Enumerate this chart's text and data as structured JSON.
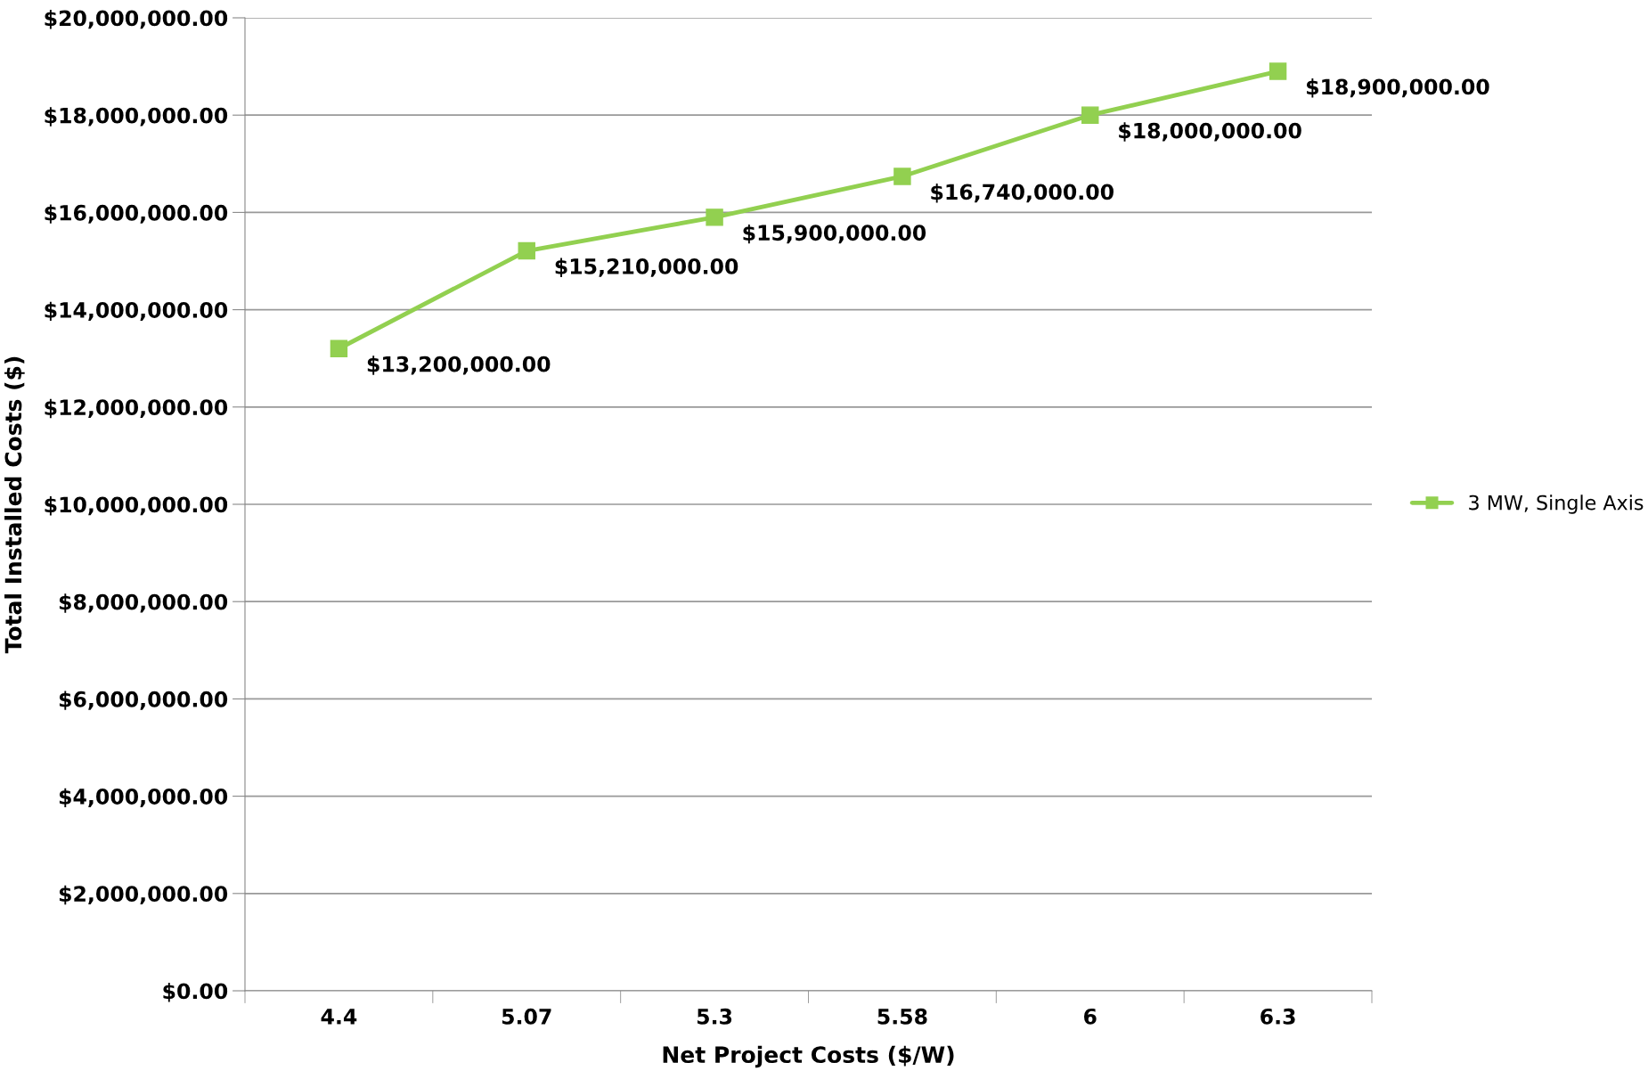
{
  "chart_data": {
    "type": "line",
    "xlabel": "Net Project Costs ($/W)",
    "ylabel": "Total Installed Costs ($)",
    "categories": [
      "4.4",
      "5.07",
      "5.3",
      "5.58",
      "6",
      "6.3"
    ],
    "series": [
      {
        "name": "3 MW, Single Axis",
        "color": "#92d050",
        "values": [
          13200000,
          15210000,
          15900000,
          16740000,
          18000000,
          18900000
        ],
        "value_labels": [
          "$13,200,000.00",
          "$15,210,000.00",
          "$15,900,000.00",
          "$16,740,000.00",
          "$18,000,000.00",
          "$18,900,000.00"
        ]
      }
    ],
    "ylim": [
      0,
      20000000
    ],
    "yticks": [
      {
        "value": 0,
        "label": "$0.00"
      },
      {
        "value": 2000000,
        "label": "$2,000,000.00"
      },
      {
        "value": 4000000,
        "label": "$4,000,000.00"
      },
      {
        "value": 6000000,
        "label": "$6,000,000.00"
      },
      {
        "value": 8000000,
        "label": "$8,000,000.00"
      },
      {
        "value": 10000000,
        "label": "$10,000,000.00"
      },
      {
        "value": 12000000,
        "label": "$12,000,000.00"
      },
      {
        "value": 14000000,
        "label": "$14,000,000.00"
      },
      {
        "value": 16000000,
        "label": "$16,000,000.00"
      },
      {
        "value": 18000000,
        "label": "$18,000,000.00"
      },
      {
        "value": 20000000,
        "label": "$20,000,000.00"
      }
    ],
    "grid": "y",
    "legend": "right",
    "marker": "square",
    "line_style": "solid"
  }
}
